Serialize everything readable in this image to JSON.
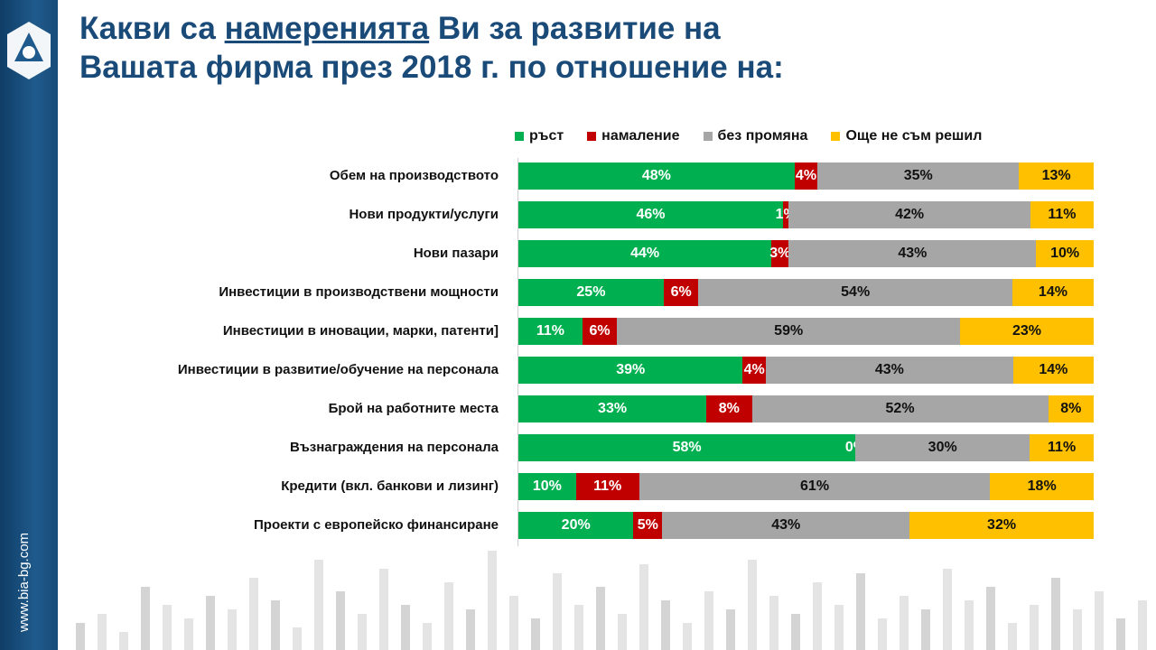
{
  "sidebar": {
    "url": "www.bia-bg.com"
  },
  "title": {
    "line1_pre": "Какви са ",
    "line1_underlined": "намеренията",
    "line1_post": " Ви за развитие на",
    "line2": "Вашата фирма през 2018 г. по отношение на:"
  },
  "chart_data": {
    "type": "bar",
    "orientation": "horizontal",
    "stacked": "100%",
    "categories": [
      "Обем на производството",
      "Нови продукти/услуги",
      "Нови пазари",
      "Инвестиции в производствени  мощности",
      "Инвестиции в иновации, марки, патенти]",
      "Инвестиции в развитие/обучение на персонала",
      "Брой на работните места",
      "Възнаграждения  на персонала",
      "Кредити (вкл. банкови и лизинг)",
      "Проекти  с европейско финансиране"
    ],
    "series": [
      {
        "name": "ръст",
        "color": "#00b050",
        "label_color": "#ffffff",
        "values": [
          48,
          46,
          44,
          25,
          11,
          39,
          33,
          58,
          10,
          20
        ]
      },
      {
        "name": "намаление",
        "color": "#c00000",
        "label_color": "#ffffff",
        "values": [
          4,
          1,
          3,
          6,
          6,
          4,
          8,
          0,
          11,
          5
        ]
      },
      {
        "name": "без промяна",
        "color": "#a6a6a6",
        "label_color": "#111111",
        "values": [
          35,
          42,
          43,
          54,
          59,
          43,
          52,
          30,
          61,
          43
        ]
      },
      {
        "name": "Още не съм решил",
        "color": "#ffc000",
        "label_color": "#111111",
        "values": [
          13,
          11,
          10,
          14,
          23,
          14,
          8,
          11,
          18,
          32
        ]
      }
    ],
    "value_suffix": "%",
    "legend": "top"
  }
}
